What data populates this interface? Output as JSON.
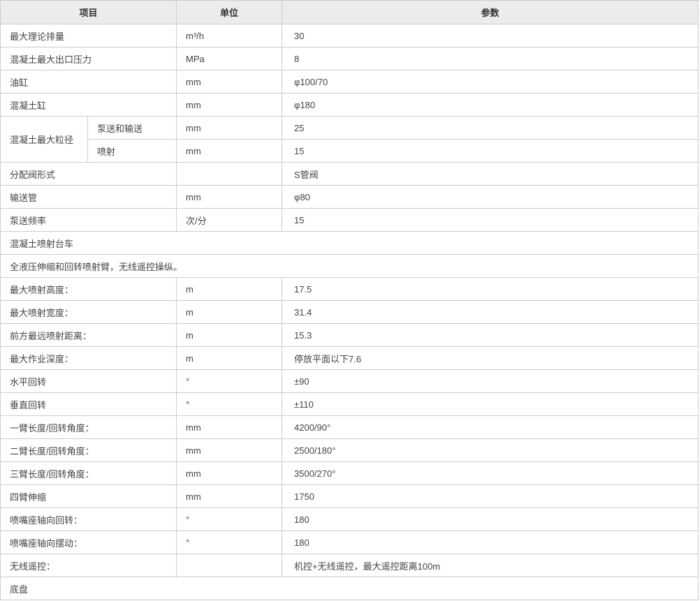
{
  "table": {
    "headers": {
      "item": "项目",
      "unit": "单位",
      "param": "参数"
    },
    "colors": {
      "header_bg": "#ececec",
      "border": "#cccccc",
      "text": "#444444",
      "header_text": "#333333"
    },
    "rows": [
      {
        "type": "normal",
        "item": "最大理论排量",
        "unit": "m³/h",
        "param": "30"
      },
      {
        "type": "normal",
        "item": "混凝土最大出口压力",
        "unit": "MPa",
        "param": "8"
      },
      {
        "type": "normal",
        "item": "油缸",
        "unit": "mm",
        "param": "φ100/70"
      },
      {
        "type": "normal",
        "item": "混凝土缸",
        "unit": "mm",
        "param": "φ180"
      },
      {
        "type": "group",
        "item": "混凝土最大粒径",
        "sub": [
          {
            "label": "泵送和输送",
            "unit": "mm",
            "param": "25"
          },
          {
            "label": "喷射",
            "unit": "mm",
            "param": "15"
          }
        ]
      },
      {
        "type": "normal",
        "item": "分配阀形式",
        "unit": "",
        "param": "S管阀"
      },
      {
        "type": "normal",
        "item": "输送管",
        "unit": "mm",
        "param": "φ80"
      },
      {
        "type": "normal",
        "item": "泵送频率",
        "unit": "次/分",
        "param": "15"
      },
      {
        "type": "section",
        "item": "混凝土喷射台车"
      },
      {
        "type": "section",
        "item": "全液压伸缩和回转喷射臂，无线遥控操纵。"
      },
      {
        "type": "normal",
        "item": "最大喷射高度：",
        "unit": "m",
        "param": "17.5"
      },
      {
        "type": "normal",
        "item": "最大喷射宽度：",
        "unit": "m",
        "param": "31.4"
      },
      {
        "type": "normal",
        "item": "前方最远喷射距离：",
        "unit": "m",
        "param": "15.3"
      },
      {
        "type": "normal",
        "item": "最大作业深度：",
        "unit": "m",
        "param": "停放平面以下7.6"
      },
      {
        "type": "normal",
        "item": "水平回转",
        "unit": "°",
        "param": "±90"
      },
      {
        "type": "normal",
        "item": "垂直回转",
        "unit": "°",
        "param": "±110"
      },
      {
        "type": "normal",
        "item": "一臂长度/回转角度：",
        "unit": "mm",
        "param": "4200/90°"
      },
      {
        "type": "normal",
        "item": "二臂长度/回转角度：",
        "unit": "mm",
        "param": "2500/180°"
      },
      {
        "type": "normal",
        "item": "三臂长度/回转角度：",
        "unit": "mm",
        "param": "3500/270°"
      },
      {
        "type": "normal",
        "item": "四臂伸缩",
        "unit": "mm",
        "param": "1750"
      },
      {
        "type": "normal",
        "item": "喷嘴座轴向回转：",
        "unit": "°",
        "param": "180"
      },
      {
        "type": "normal",
        "item": "喷嘴座轴向摆动：",
        "unit": "°",
        "param": "180"
      },
      {
        "type": "normal",
        "item": "无线遥控：",
        "unit": "",
        "param": "机控+无线遥控，最大遥控距离100m"
      },
      {
        "type": "section",
        "item": "底盘"
      }
    ]
  }
}
